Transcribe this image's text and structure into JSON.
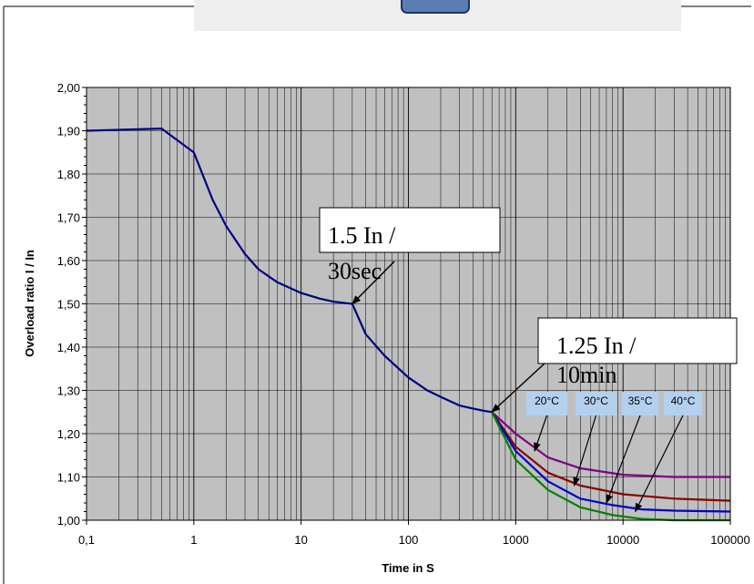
{
  "chart_data": {
    "type": "line",
    "xscale": "log",
    "xlim": [
      0.1,
      100000
    ],
    "ylim": [
      1.0,
      2.0
    ],
    "xlabel": "Time in S",
    "ylabel": "Overload ratio  I / In",
    "grid": true,
    "plot_background": "#c0c0c0",
    "x_tick_labels": [
      "0,1",
      "1",
      "10",
      "100",
      "1000",
      "10000",
      "100000"
    ],
    "y_tick_labels": [
      "1,00",
      "1,10",
      "1,20",
      "1,30",
      "1,40",
      "1,50",
      "1,60",
      "1,70",
      "1,80",
      "1,90",
      "2,00"
    ],
    "series": [
      {
        "color": "#000080",
        "x": [
          0.1,
          0.5,
          1,
          1.5,
          2,
          3,
          4,
          6,
          10,
          15,
          20,
          30,
          40,
          60,
          100,
          150,
          200,
          300,
          400,
          500,
          600
        ],
        "y": [
          1.9,
          1.905,
          1.85,
          1.74,
          1.68,
          1.615,
          1.58,
          1.55,
          1.525,
          1.512,
          1.505,
          1.5,
          1.43,
          1.38,
          1.33,
          1.3,
          1.285,
          1.265,
          1.258,
          1.253,
          1.25
        ]
      },
      {
        "color": "#800080",
        "x": [
          600,
          1000,
          2000,
          4000,
          10000,
          30000,
          100000
        ],
        "y": [
          1.25,
          1.2,
          1.145,
          1.12,
          1.105,
          1.1,
          1.1
        ]
      },
      {
        "color": "#8b0000",
        "x": [
          600,
          1000,
          2000,
          4000,
          10000,
          30000,
          100000
        ],
        "y": [
          1.25,
          1.17,
          1.11,
          1.08,
          1.06,
          1.05,
          1.045
        ]
      },
      {
        "color": "#0000cd",
        "x": [
          600,
          1000,
          2000,
          4000,
          8000,
          15000,
          30000,
          100000
        ],
        "y": [
          1.25,
          1.16,
          1.09,
          1.05,
          1.035,
          1.025,
          1.022,
          1.02
        ]
      },
      {
        "color": "#008000",
        "x": [
          600,
          1000,
          2000,
          4000,
          8000,
          15000,
          30000,
          100000
        ],
        "y": [
          1.25,
          1.14,
          1.07,
          1.03,
          1.012,
          1.003,
          1.0,
          1.0
        ]
      }
    ],
    "annotations": [
      {
        "lines": [
          "1.5 In /",
          "30sec"
        ],
        "point_x": 30,
        "point_y": 1.5
      },
      {
        "lines": [
          "1.25 In /",
          "10min"
        ],
        "point_x": 600,
        "point_y": 1.25
      }
    ],
    "temperature_labels": [
      {
        "text": "20°C",
        "target_x": 1500,
        "target_y": 1.16
      },
      {
        "text": "30°C",
        "target_x": 3500,
        "target_y": 1.08
      },
      {
        "text": "35°C",
        "target_x": 7000,
        "target_y": 1.04
      },
      {
        "text": "40°C",
        "target_x": 13000,
        "target_y": 1.02
      }
    ],
    "temperature_label_color": "#b3d1ee"
  }
}
